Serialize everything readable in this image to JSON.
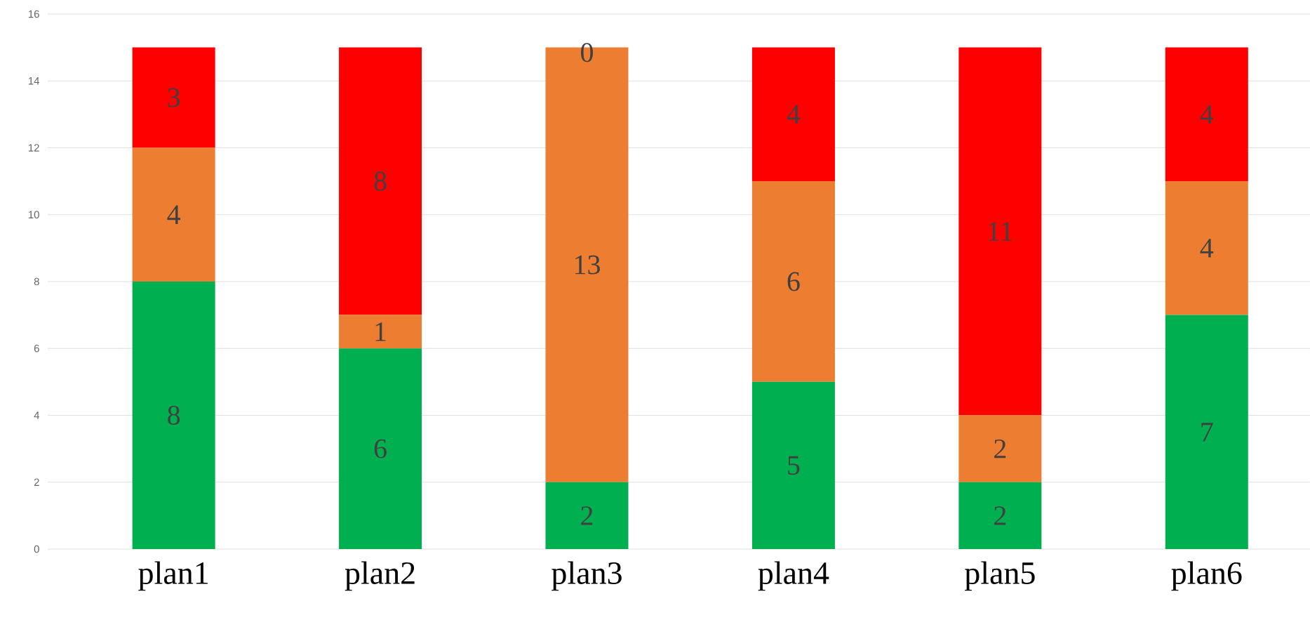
{
  "chart_data": {
    "type": "bar",
    "stacked": true,
    "categories": [
      "plan1",
      "plan2",
      "plan3",
      "plan4",
      "plan5",
      "plan6"
    ],
    "series": [
      {
        "color": "#00b050",
        "values": [
          8,
          6,
          2,
          5,
          2,
          7
        ]
      },
      {
        "color": "#ed7d31",
        "values": [
          4,
          1,
          13,
          6,
          2,
          4
        ]
      },
      {
        "color": "#ff0000",
        "values": [
          3,
          8,
          0,
          4,
          11,
          4
        ]
      }
    ],
    "ylim": [
      0,
      16
    ],
    "yticks": [
      0,
      2,
      4,
      6,
      8,
      10,
      12,
      14,
      16
    ],
    "grid": "y",
    "data_labels": true
  }
}
